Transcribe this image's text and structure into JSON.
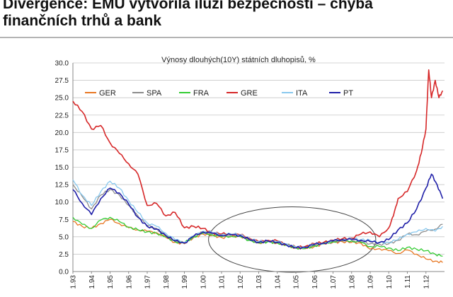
{
  "slide": {
    "title_line1": "Divergence: EMU vytvořila iluzi bezpečnosti – chyba",
    "title_line2": "finančních trhů a bank"
  },
  "chart_data": {
    "type": "line",
    "title": "Výnosy dlouhých(10Y) státních dluhopisů, %",
    "xlabel": "",
    "ylabel": "",
    "ylim": [
      0,
      30
    ],
    "yticks": [
      "0.0",
      "2.5",
      "5.0",
      "7.5",
      "10.0",
      "12.5",
      "15.0",
      "17.5",
      "20.0",
      "22.5",
      "25.0",
      "27.5",
      "30.0"
    ],
    "xlim": [
      1993,
      2013
    ],
    "xticks": [
      "1.93",
      "1.94",
      "1.95",
      "1.96",
      "1.97",
      "1.98",
      "1.99",
      "1.00",
      "1.01",
      "1.02",
      "1.03",
      "1.04",
      "1.05",
      "1.06",
      "1.07",
      "1.08",
      "1.09",
      "1.10",
      "1.11",
      "1.12"
    ],
    "grid": "horizontal",
    "legend_position": "top",
    "annotation": "ellipse around 2000–2008 convergence period",
    "series": [
      {
        "name": "GER",
        "color": "#e87722",
        "x": [
          1993,
          1993.5,
          1994,
          1994.5,
          1995,
          1995.5,
          1996,
          1996.5,
          1997,
          1997.5,
          1998,
          1998.5,
          1999,
          1999.5,
          2000,
          2000.5,
          2001,
          2001.5,
          2002,
          2002.5,
          2003,
          2003.5,
          2004,
          2004.5,
          2005,
          2005.5,
          2006,
          2006.5,
          2007,
          2007.5,
          2008,
          2008.5,
          2009,
          2009.5,
          2010,
          2010.5,
          2011,
          2011.5,
          2012,
          2012.5,
          2012.9
        ],
        "y": [
          7.2,
          6.5,
          6.2,
          6.9,
          7.5,
          6.9,
          6.3,
          6.0,
          5.8,
          5.6,
          4.9,
          4.2,
          4.0,
          4.9,
          5.4,
          5.2,
          4.9,
          5.0,
          5.1,
          4.6,
          4.1,
          4.3,
          4.1,
          3.8,
          3.4,
          3.3,
          3.6,
          4.0,
          4.2,
          4.3,
          4.2,
          4.1,
          3.2,
          3.3,
          3.0,
          2.6,
          3.1,
          2.5,
          1.8,
          1.5,
          1.3
        ]
      },
      {
        "name": "SPA",
        "color": "#8c8c8c",
        "x": [
          1993,
          1993.5,
          1994,
          1994.5,
          1995,
          1995.5,
          1996,
          1996.5,
          1997,
          1997.5,
          1998,
          1998.5,
          1999,
          1999.5,
          2000,
          2000.5,
          2001,
          2001.5,
          2002,
          2002.5,
          2003,
          2003.5,
          2004,
          2004.5,
          2005,
          2005.5,
          2006,
          2006.5,
          2007,
          2007.5,
          2008,
          2008.5,
          2009,
          2009.5,
          2010,
          2010.5,
          2011,
          2011.5,
          2012,
          2012.5,
          2012.9
        ],
        "y": [
          12.5,
          10.8,
          9.0,
          11.0,
          11.8,
          11.0,
          9.5,
          8.0,
          6.6,
          6.2,
          5.1,
          4.5,
          4.1,
          5.0,
          5.7,
          5.5,
          5.2,
          5.3,
          5.2,
          4.6,
          4.2,
          4.3,
          4.2,
          3.9,
          3.4,
          3.4,
          3.8,
          4.0,
          4.3,
          4.4,
          4.4,
          4.3,
          4.0,
          3.9,
          4.0,
          4.5,
          5.4,
          5.3,
          5.8,
          6.1,
          6.8
        ]
      },
      {
        "name": "FRA",
        "color": "#33cc33",
        "x": [
          1993,
          1993.5,
          1994,
          1994.5,
          1995,
          1995.5,
          1996,
          1996.5,
          1997,
          1997.5,
          1998,
          1998.5,
          1999,
          1999.5,
          2000,
          2000.5,
          2001,
          2001.5,
          2002,
          2002.5,
          2003,
          2003.5,
          2004,
          2004.5,
          2005,
          2005.5,
          2006,
          2006.5,
          2007,
          2007.5,
          2008,
          2008.5,
          2009,
          2009.5,
          2010,
          2010.5,
          2011,
          2011.5,
          2012,
          2012.5,
          2012.9
        ],
        "y": [
          7.8,
          6.8,
          6.2,
          7.4,
          7.8,
          7.2,
          6.4,
          6.0,
          5.7,
          5.5,
          5.0,
          4.3,
          4.1,
          5.0,
          5.5,
          5.3,
          5.0,
          5.1,
          5.0,
          4.5,
          4.1,
          4.3,
          4.1,
          3.8,
          3.4,
          3.3,
          3.7,
          4.0,
          4.3,
          4.5,
          4.4,
          4.2,
          3.6,
          3.6,
          3.4,
          3.0,
          3.5,
          3.2,
          3.0,
          2.5,
          2.2
        ]
      },
      {
        "name": "GRE",
        "color": "#d62728",
        "x": [
          1993,
          1993.5,
          1994,
          1994.5,
          1995,
          1995.5,
          1996,
          1996.5,
          1997,
          1997.5,
          1998,
          1998.5,
          1999,
          1999.5,
          2000,
          2000.5,
          2001,
          2001.5,
          2002,
          2002.5,
          2003,
          2003.5,
          2004,
          2004.5,
          2005,
          2005.5,
          2006,
          2006.5,
          2007,
          2007.5,
          2008,
          2008.5,
          2009,
          2009.5,
          2010,
          2010.25,
          2010.5,
          2011,
          2011.5,
          2011.75,
          2012,
          2012.15,
          2012.3,
          2012.5,
          2012.7,
          2012.9
        ],
        "y": [
          24.5,
          23.0,
          20.5,
          21.0,
          18.5,
          17.0,
          15.5,
          14.0,
          9.5,
          9.8,
          8.0,
          8.5,
          6.3,
          6.5,
          6.2,
          5.6,
          5.4,
          5.4,
          5.3,
          4.8,
          4.3,
          4.5,
          4.4,
          3.9,
          3.5,
          3.6,
          4.0,
          4.2,
          4.5,
          4.7,
          4.8,
          5.4,
          5.7,
          5.0,
          6.3,
          8.0,
          10.5,
          11.5,
          14.5,
          17.0,
          20.5,
          29.0,
          25.0,
          27.5,
          25.0,
          26.0
        ]
      },
      {
        "name": "ITA",
        "color": "#88c8ee",
        "x": [
          1993,
          1993.5,
          1994,
          1994.5,
          1995,
          1995.5,
          1996,
          1996.5,
          1997,
          1997.5,
          1998,
          1998.5,
          1999,
          1999.5,
          2000,
          2000.5,
          2001,
          2001.5,
          2002,
          2002.5,
          2003,
          2003.5,
          2004,
          2004.5,
          2005,
          2005.5,
          2006,
          2006.5,
          2007,
          2007.5,
          2008,
          2008.5,
          2009,
          2009.5,
          2010,
          2010.5,
          2011,
          2011.5,
          2012,
          2012.5,
          2012.9
        ],
        "y": [
          13.2,
          11.0,
          9.5,
          11.5,
          13.0,
          12.0,
          10.2,
          8.5,
          7.0,
          6.5,
          5.5,
          4.6,
          4.2,
          5.1,
          5.8,
          5.6,
          5.3,
          5.4,
          5.3,
          4.7,
          4.3,
          4.4,
          4.3,
          4.0,
          3.5,
          3.5,
          3.9,
          4.1,
          4.4,
          4.6,
          4.7,
          4.6,
          4.5,
          4.1,
          4.2,
          4.6,
          5.4,
          5.7,
          6.2,
          5.8,
          6.5
        ]
      },
      {
        "name": "PT",
        "color": "#1f1fa8",
        "x": [
          1993,
          1993.5,
          1994,
          1994.5,
          1995,
          1995.5,
          1996,
          1996.5,
          1997,
          1997.5,
          1998,
          1998.5,
          1999,
          1999.5,
          2000,
          2000.5,
          2001,
          2001.5,
          2002,
          2002.5,
          2003,
          2003.5,
          2004,
          2004.5,
          2005,
          2005.5,
          2006,
          2006.5,
          2007,
          2007.5,
          2008,
          2008.5,
          2009,
          2009.5,
          2010,
          2010.5,
          2011,
          2011.5,
          2012,
          2012.3,
          2012.6,
          2012.9
        ],
        "y": [
          11.8,
          9.8,
          8.2,
          10.5,
          12.0,
          11.3,
          9.7,
          7.8,
          6.5,
          6.1,
          5.2,
          4.4,
          4.1,
          5.1,
          5.7,
          5.5,
          5.2,
          5.3,
          5.2,
          4.6,
          4.2,
          4.4,
          4.2,
          3.8,
          3.4,
          3.5,
          3.9,
          4.1,
          4.4,
          4.6,
          4.6,
          4.5,
          4.3,
          4.2,
          4.6,
          6.0,
          7.0,
          9.0,
          12.0,
          14.0,
          12.5,
          10.5
        ]
      }
    ]
  }
}
